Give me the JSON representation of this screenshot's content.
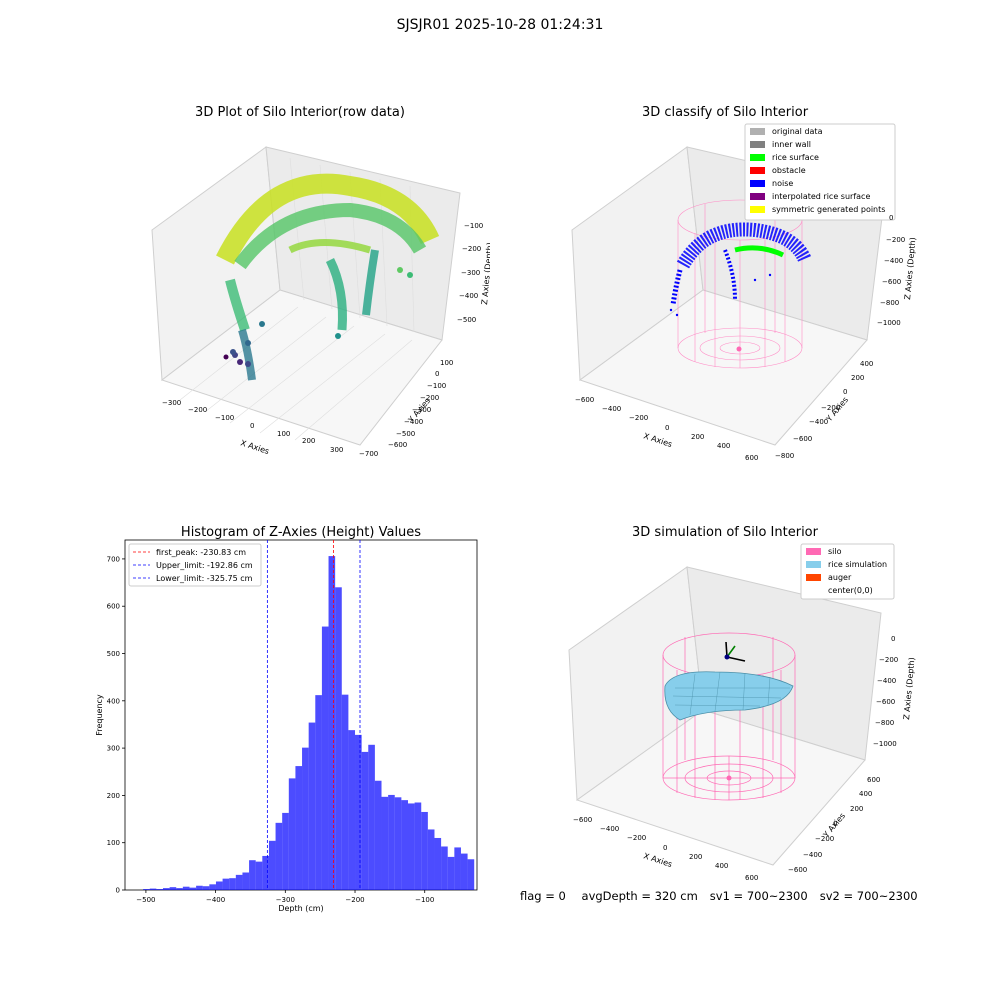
{
  "figure": {
    "suptitle": "SJSJR01 2025-10-28 01:24:31",
    "footer": {
      "flag": "flag = 0",
      "avg_depth": "avgDepth = 320 cm",
      "sv1": "sv1 = 700~2300",
      "sv2": "sv2 = 700~2300"
    }
  },
  "panels": {
    "raw": {
      "title": "3D Plot of Silo Interior(row data)",
      "x_label": "X Axies",
      "y_label": "Y Axies",
      "z_label": "Z Axies (Depth)",
      "x_ticks": [
        "−300",
        "−200",
        "−100",
        "0",
        "100",
        "200",
        "300"
      ],
      "y_ticks": [
        "100",
        "0",
        "−100",
        "−200",
        "−300",
        "−400",
        "−500",
        "−600",
        "−700"
      ],
      "z_ticks": [
        "−100",
        "−200",
        "−300",
        "−400",
        "−500"
      ]
    },
    "classify": {
      "title": "3D classify of Silo Interior",
      "x_label": "X Axies",
      "y_label": "Y Axies",
      "z_label": "Z Axies (Depth)",
      "x_ticks": [
        "−600",
        "−400",
        "−200",
        "0",
        "200",
        "400",
        "600"
      ],
      "y_ticks": [
        "400",
        "200",
        "0",
        "−200",
        "−400",
        "−600",
        "−800"
      ],
      "z_ticks": [
        "0",
        "−200",
        "−400",
        "−600",
        "−800",
        "−1000"
      ],
      "legend": [
        {
          "label": "original data",
          "color": "#b0b0b0"
        },
        {
          "label": "inner wall",
          "color": "#808080"
        },
        {
          "label": "rice surface",
          "color": "#00ff00"
        },
        {
          "label": "obstacle",
          "color": "#ff0000"
        },
        {
          "label": "noise",
          "color": "#0000ff"
        },
        {
          "label": "interpolated rice surface",
          "color": "#800080"
        },
        {
          "label": "symmetric generated points",
          "color": "#ffff00"
        }
      ]
    },
    "simulation": {
      "title": "3D simulation of Silo Interior",
      "x_label": "X Axies",
      "y_label": "Y Axies",
      "z_label": "Z Axies (Depth)",
      "x_ticks": [
        "−600",
        "−400",
        "−200",
        "0",
        "200",
        "400",
        "600"
      ],
      "y_ticks": [
        "600",
        "400",
        "200",
        "0",
        "−200",
        "−400",
        "−600"
      ],
      "z_ticks": [
        "0",
        "−200",
        "−400",
        "−600",
        "−800",
        "−1000"
      ],
      "legend": [
        {
          "label": "silo",
          "color": "#ff69b4"
        },
        {
          "label": "rice simulation",
          "color": "#87ceeb"
        },
        {
          "label": "auger",
          "color": "#ff4500"
        },
        {
          "label": "center(0,0)",
          "color": "#ffffff"
        }
      ]
    }
  },
  "chart_data": {
    "type": "bar",
    "title": "Histogram of Z-Axies (Height) Values",
    "xlabel": "Depth (cm)",
    "ylabel": "Frequency",
    "xlim": [
      -530,
      -25
    ],
    "ylim": [
      0,
      740
    ],
    "x_ticks": [
      -500,
      -400,
      -300,
      -200,
      -100
    ],
    "y_ticks": [
      0,
      100,
      200,
      300,
      400,
      500,
      600,
      700
    ],
    "bar_color": "#0000ff",
    "bin_width": 9.5,
    "bin_left_edges": [
      -504,
      -494.5,
      -485,
      -475.5,
      -466,
      -456.5,
      -447,
      -437.5,
      -428,
      -418.5,
      -409,
      -399.5,
      -390,
      -380.5,
      -371,
      -361.5,
      -352,
      -342.5,
      -333,
      -323.5,
      -314,
      -304.5,
      -295,
      -285.5,
      -276,
      -266.5,
      -257,
      -247.5,
      -238,
      -228.5,
      -219,
      -209.5,
      -200,
      -190.5,
      -181,
      -171.5,
      -162,
      -152.5,
      -143,
      -133.5,
      -124,
      -114.5,
      -105,
      -95.5,
      -86,
      -76.5,
      -67,
      -57.5,
      -48,
      -38.5
    ],
    "values": [
      2,
      3,
      2,
      4,
      6,
      4,
      7,
      5,
      9,
      8,
      12,
      18,
      24,
      25,
      32,
      37,
      63,
      60,
      72,
      104,
      142,
      163,
      236,
      262,
      301,
      354,
      412,
      557,
      706,
      640,
      413,
      338,
      328,
      292,
      307,
      231,
      197,
      201,
      196,
      190,
      183,
      185,
      165,
      128,
      110,
      92,
      70,
      90,
      77,
      65
    ],
    "vlines": [
      {
        "label": "first_peak: -230.83 cm",
        "x": -230.83,
        "color": "#ff0000"
      },
      {
        "label": "Upper_limit: -192.86 cm",
        "x": -192.86,
        "color": "#0000ff"
      },
      {
        "label": "Lower_limit: -325.75 cm",
        "x": -325.75,
        "color": "#0000ff"
      }
    ]
  }
}
